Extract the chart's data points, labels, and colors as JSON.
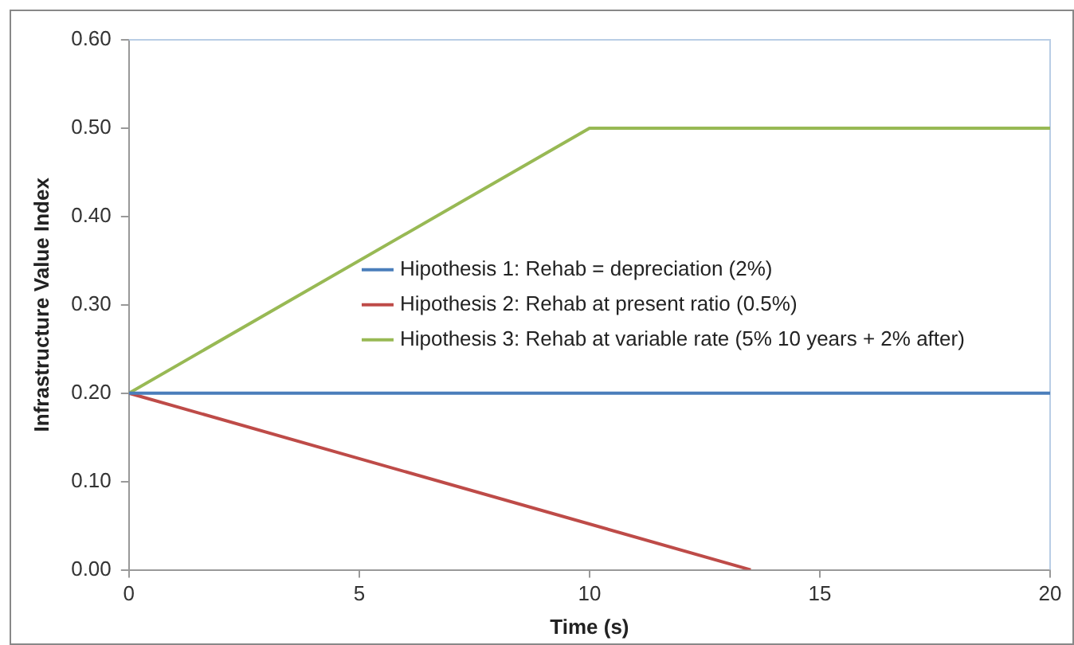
{
  "chart_data": {
    "type": "line",
    "xlabel": "Time (s)",
    "ylabel": "Infrastructure Value Index",
    "xlim": [
      0,
      20
    ],
    "xticks": [
      0,
      5,
      10,
      15,
      20
    ],
    "ylim": [
      0,
      0.6
    ],
    "yticks": [
      {
        "value": 0,
        "label": "0.00"
      },
      {
        "value": 0.1,
        "label": "0.10"
      },
      {
        "value": 0.2,
        "label": "0.20"
      },
      {
        "value": 0.3,
        "label": "0.30"
      },
      {
        "value": 0.4,
        "label": "0.40"
      },
      {
        "value": 0.5,
        "label": "0.50"
      },
      {
        "value": 0.6,
        "label": "0.60"
      }
    ],
    "grid": false,
    "legend": "center",
    "marker": "none",
    "line_style": "solid",
    "series": [
      {
        "name": "Hipothesis 1: Rehab = depreciation (2%)",
        "color": "#4a7ebb",
        "x": [
          0,
          20
        ],
        "values": [
          0.2,
          0.2
        ]
      },
      {
        "name": "Hipothesis 2: Rehab at present ratio (0.5%)",
        "color": "#be4b48",
        "x": [
          0,
          13.5
        ],
        "values": [
          0.2,
          0
        ]
      },
      {
        "name": "Hipothesis 3: Rehab at variable rate (5% 10 years + 2% after)",
        "color": "#98b954",
        "x": [
          0,
          10,
          20
        ],
        "values": [
          0.2,
          0.5,
          0.5
        ]
      }
    ]
  }
}
